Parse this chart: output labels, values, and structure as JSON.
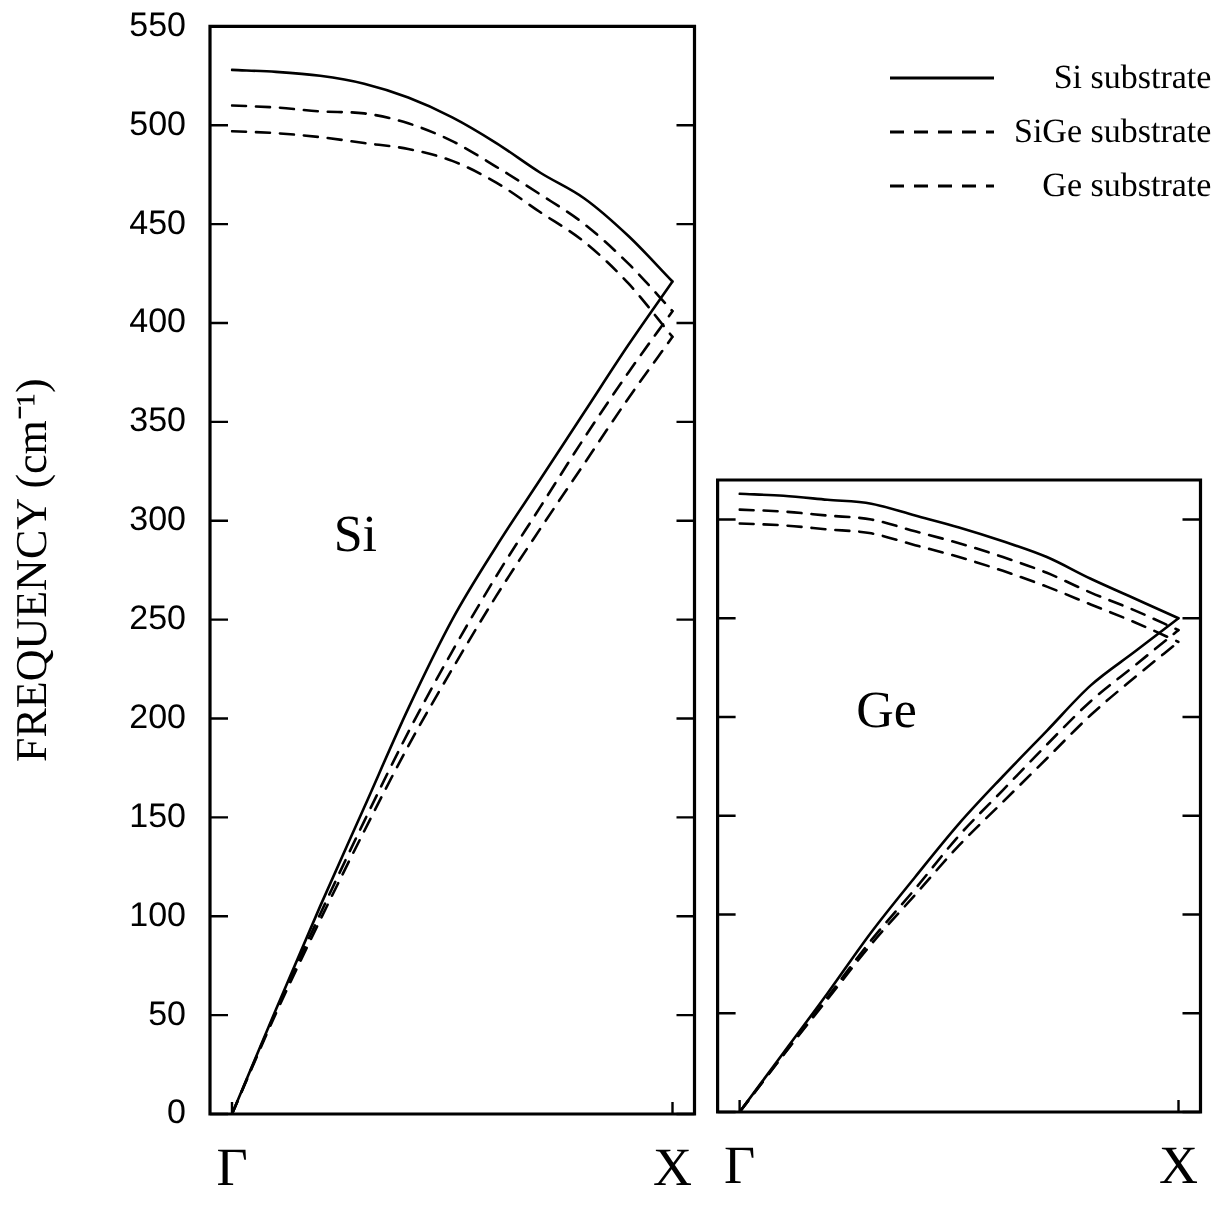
{
  "chart_data": [
    {
      "type": "line",
      "ylabel": "FREQUENCY (cm⁻¹)",
      "categories": [
        "Γ",
        null,
        null,
        null,
        null,
        null,
        null,
        null,
        null,
        null,
        "X"
      ],
      "ylim": [
        0,
        550
      ],
      "yticks": [
        0,
        50,
        100,
        150,
        200,
        250,
        300,
        350,
        400,
        450,
        500,
        550
      ],
      "grid": false,
      "legend": "top right",
      "marker": "none",
      "annotations": [
        "Si"
      ],
      "series": [
        {
          "name": "Si substrate",
          "color": "#000000",
          "line_style": "solid",
          "values": [
            0,
            53,
            105,
            155,
            205,
            250,
            287,
            321,
            355,
            389,
            421
          ]
        },
        {
          "color": "#000000",
          "line_style": "solid",
          "values": [
            528,
            527,
            525,
            521,
            514,
            504,
            491,
            476,
            463,
            444,
            421
          ]
        },
        {
          "name": "SiGe substrate",
          "color": "#000000",
          "line_style": "dashed",
          "values": [
            0,
            52,
            101,
            148,
            193,
            234,
            272,
            307,
            342,
            375,
            406
          ]
        },
        {
          "color": "#000000",
          "line_style": "dashed",
          "values": [
            510,
            509,
            507,
            506,
            501,
            492,
            479,
            465,
            450,
            430,
            406
          ]
        },
        {
          "name": "Ge substrate",
          "color": "#000000",
          "line_style": "dashed",
          "values": [
            0,
            51,
            98,
            143,
            186,
            225,
            262,
            296,
            329,
            362,
            393
          ]
        },
        {
          "color": "#000000",
          "line_style": "dashed",
          "values": [
            497,
            496,
            494,
            491,
            488,
            482,
            471,
            456,
            441,
            420,
            393
          ]
        }
      ]
    },
    {
      "type": "line",
      "categories": [
        "Γ",
        null,
        null,
        null,
        null,
        null,
        null,
        null,
        null,
        null,
        "X"
      ],
      "ylim": [
        0,
        320
      ],
      "yticks": [
        0,
        50,
        100,
        150,
        200,
        250,
        300
      ],
      "tick_labels": "x",
      "grid": false,
      "legend": false,
      "marker": "none",
      "annotations": [
        "Ge"
      ],
      "series": [
        {
          "color": "#000000",
          "line_style": "solid",
          "values": [
            0,
            30,
            60,
            91,
            119,
            146,
            170,
            193,
            216,
            233,
            250
          ]
        },
        {
          "color": "#000000",
          "line_style": "solid",
          "values": [
            313,
            312,
            310,
            308,
            302,
            296,
            289,
            281,
            270,
            260,
            250
          ]
        },
        {
          "color": "#000000",
          "line_style": "dashed",
          "values": [
            0,
            29,
            58,
            87,
            113,
            140,
            163,
            186,
            208,
            226,
            244
          ]
        },
        {
          "color": "#000000",
          "line_style": "dashed",
          "values": [
            305,
            304,
            302,
            300,
            294,
            288,
            281,
            273,
            263,
            254,
            244
          ]
        },
        {
          "color": "#000000",
          "line_style": "dashed",
          "values": [
            0,
            29,
            57,
            85,
            110,
            135,
            157,
            179,
            201,
            220,
            238
          ]
        },
        {
          "color": "#000000",
          "line_style": "dashed",
          "values": [
            298,
            297,
            295,
            293,
            287,
            281,
            274,
            266,
            257,
            248,
            238
          ]
        }
      ]
    }
  ]
}
